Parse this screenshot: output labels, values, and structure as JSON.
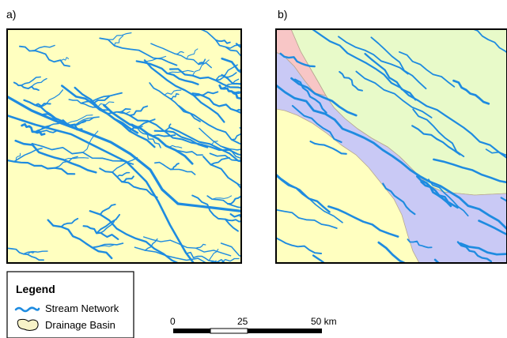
{
  "panels": [
    {
      "label": "a)"
    },
    {
      "label": "b)"
    }
  ],
  "legend": {
    "title": "Legend",
    "items": [
      {
        "label": "Stream Network",
        "icon": "stream-line-icon"
      },
      {
        "label": "Drainage Basin",
        "icon": "basin-polygon-icon"
      }
    ]
  },
  "scale_bar": {
    "ticks": [
      "0",
      "25",
      "50 km"
    ]
  },
  "colors": {
    "stream": "#1e8be0",
    "land": "#ffffc0",
    "basin_pink": "#f8c6c6",
    "basin_green": "#e8fac9",
    "basin_purple": "#c9c9f5",
    "basin_yellow": "#ffffc0"
  }
}
